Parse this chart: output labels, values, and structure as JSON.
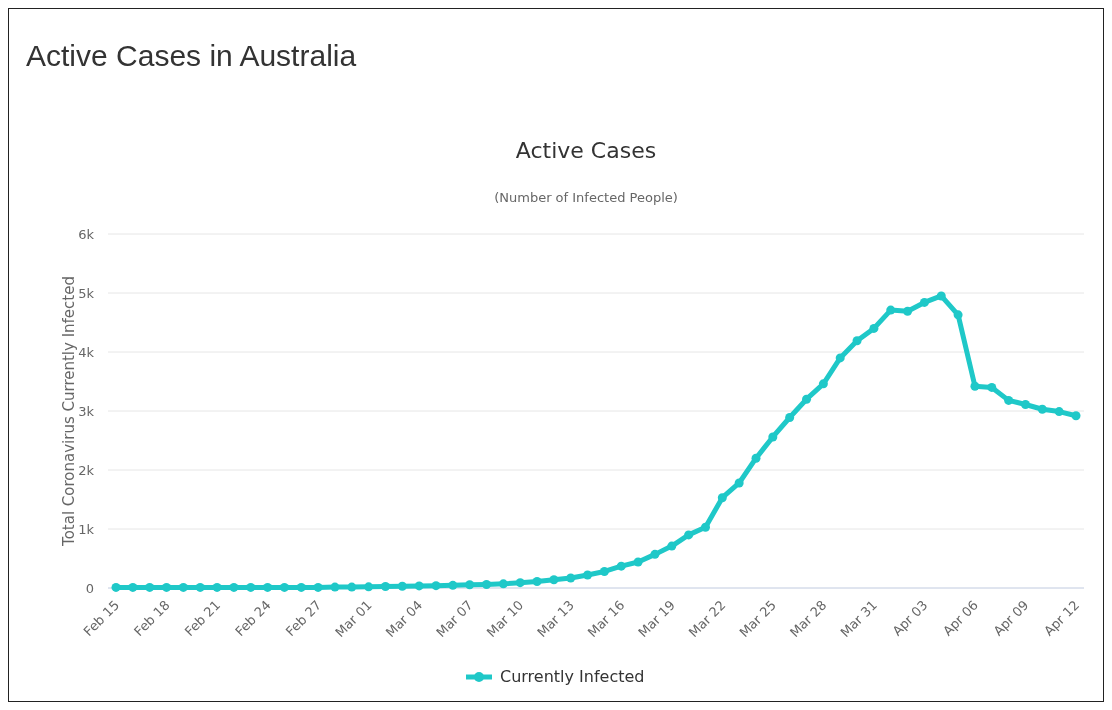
{
  "chart_data": {
    "type": "line",
    "title": "Active Cases in Australia",
    "subtitle": "Active Cases",
    "annotations": [
      "(Number of Infected People)"
    ],
    "ylabel": "Total Coronavirus Currently Infected",
    "categories": [
      "Feb 15",
      null,
      null,
      "Feb 18",
      null,
      null,
      "Feb 21",
      null,
      null,
      "Feb 24",
      null,
      null,
      "Feb 27",
      null,
      null,
      "Mar 01",
      null,
      null,
      "Mar 04",
      null,
      null,
      "Mar 07",
      null,
      null,
      "Mar 10",
      null,
      null,
      "Mar 13",
      null,
      null,
      "Mar 16",
      null,
      null,
      "Mar 19",
      null,
      null,
      "Mar 22",
      null,
      null,
      "Mar 25",
      null,
      null,
      "Mar 28",
      null,
      null,
      "Mar 31",
      null,
      null,
      "Apr 03",
      null,
      null,
      "Apr 06",
      null,
      null,
      "Apr 09",
      null,
      null,
      "Apr 12"
    ],
    "series": [
      {
        "name": "Currently Infected",
        "color": "#1fc8c8",
        "values": [
          10,
          10,
          10,
          10,
          10,
          10,
          10,
          10,
          10,
          10,
          10,
          10,
          10,
          15,
          15,
          20,
          25,
          30,
          35,
          40,
          45,
          55,
          60,
          70,
          90,
          110,
          140,
          170,
          220,
          280,
          370,
          440,
          570,
          710,
          900,
          1030,
          1530,
          1780,
          2200,
          2560,
          2890,
          3200,
          3460,
          3900,
          4190,
          4400,
          4710,
          4690,
          4840,
          4950,
          4630,
          3420,
          3400,
          3180,
          3110,
          3030,
          2990,
          2920
        ]
      }
    ],
    "ylim": [
      0,
      6000
    ],
    "yticks": [
      {
        "value": 0,
        "label": "0"
      },
      {
        "value": 1000,
        "label": "1k"
      },
      {
        "value": 2000,
        "label": "2k"
      },
      {
        "value": 3000,
        "label": "3k"
      },
      {
        "value": 4000,
        "label": "4k"
      },
      {
        "value": 5000,
        "label": "5k"
      },
      {
        "value": 6000,
        "label": "6k"
      }
    ],
    "grid": "y",
    "legend": "bottom",
    "marker": "circle",
    "line_style": "solid"
  }
}
